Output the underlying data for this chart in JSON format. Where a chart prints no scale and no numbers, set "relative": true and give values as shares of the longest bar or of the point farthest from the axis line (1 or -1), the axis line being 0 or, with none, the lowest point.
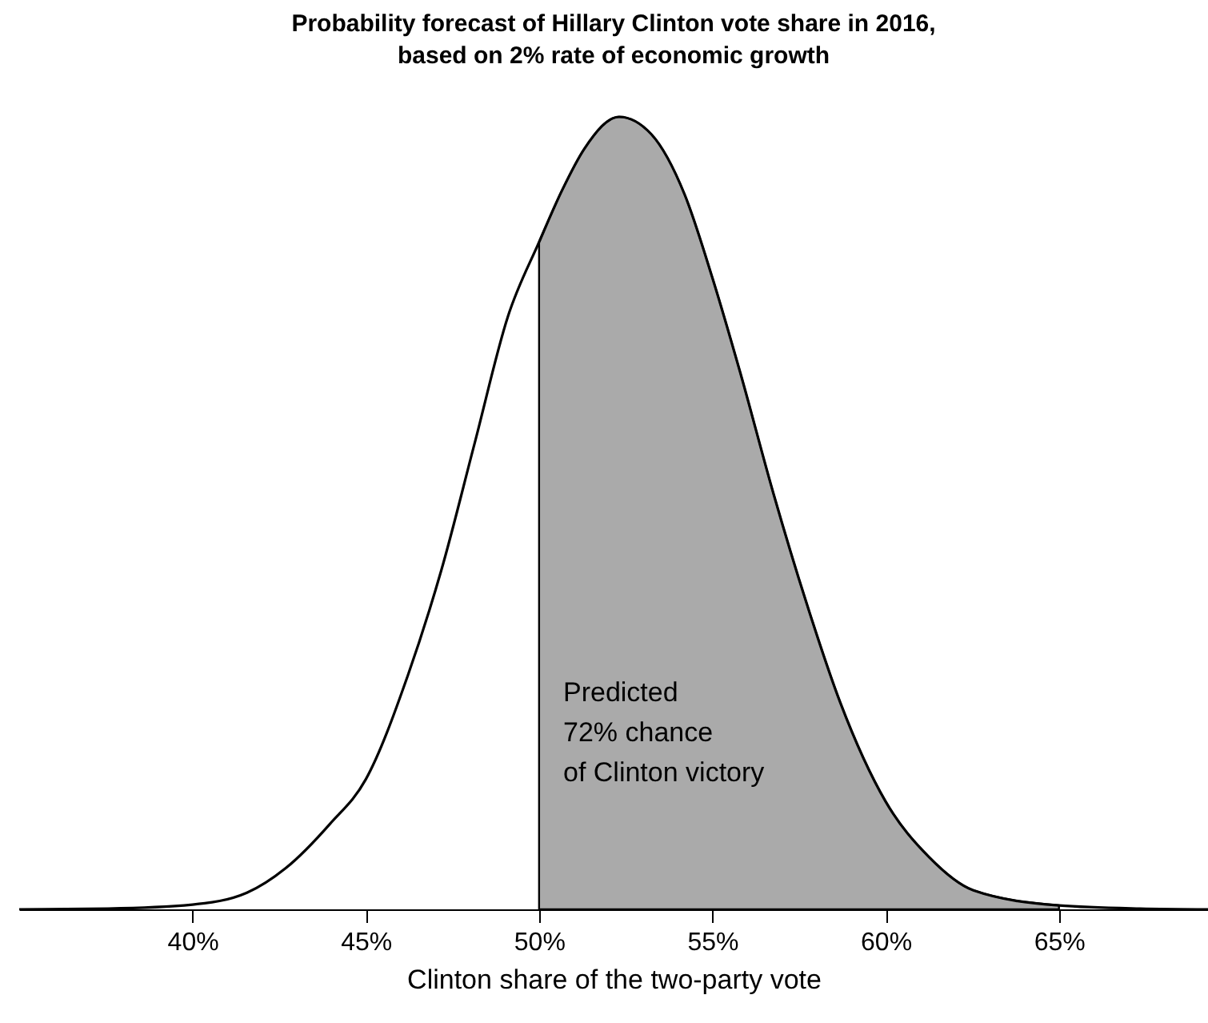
{
  "chart_data": {
    "type": "area",
    "relative": true,
    "title": "Probability forecast of Hillary Clinton vote share in 2016,\nbased on 2% rate of economic growth",
    "xlabel": "Clinton share of the two-party vote",
    "annotations": [
      "Predicted\n72% chance\nof Clinton victory"
    ],
    "xlim": [
      35,
      69.3
    ],
    "xticks": [
      {
        "value": 40,
        "label": "40%"
      },
      {
        "value": 45,
        "label": "45%"
      },
      {
        "value": 50,
        "label": "50%"
      },
      {
        "value": 55,
        "label": "55%"
      },
      {
        "value": 60,
        "label": "60%"
      },
      {
        "value": 65,
        "label": "65%"
      }
    ],
    "grid": false,
    "series": [
      {
        "type": "area",
        "color": "#aaaaaa",
        "x": [
          50,
          50.67,
          51.31,
          52.31,
          53.24,
          54.2,
          55,
          55.8,
          56.76,
          57.72,
          58.69,
          60,
          61.25,
          62.53,
          65
        ],
        "values": [
          0.842,
          0.908,
          0.96,
          1,
          0.978,
          0.902,
          0.797,
          0.678,
          0.525,
          0.386,
          0.261,
          0.136,
          0.066,
          0.024,
          0.005
        ]
      },
      {
        "type": "line",
        "color": "#000000",
        "x": [
          35,
          37.56,
          40,
          41.57,
          42.69,
          43.97,
          45,
          46.22,
          47.18,
          48.14,
          49.1,
          50,
          50.67,
          51.31,
          52.31,
          53.24,
          54.2,
          55,
          55.8,
          56.76,
          57.72,
          58.69,
          60,
          61.25,
          62.53,
          65,
          67.34,
          69.3
        ],
        "values": [
          0,
          0.001,
          0.006,
          0.021,
          0.052,
          0.108,
          0.164,
          0.296,
          0.428,
          0.588,
          0.748,
          0.842,
          0.908,
          0.96,
          1,
          0.978,
          0.902,
          0.797,
          0.678,
          0.525,
          0.386,
          0.261,
          0.136,
          0.066,
          0.024,
          0.005,
          0.001,
          0
        ]
      }
    ]
  }
}
